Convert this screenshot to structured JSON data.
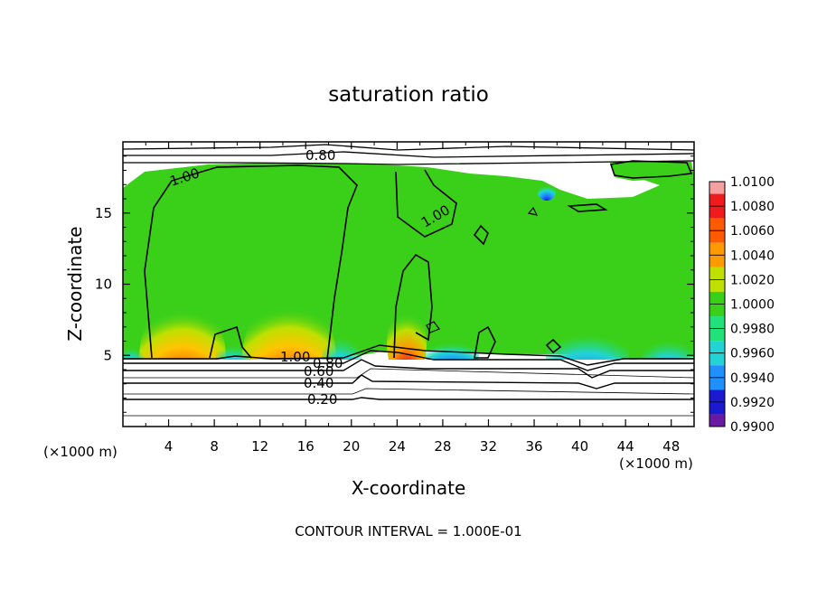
{
  "chart_data": {
    "type": "heatmap",
    "title": "saturation ratio",
    "xlabel": "X-coordinate",
    "ylabel": "Z-coordinate",
    "x_unit_left": "(×1000 m)",
    "x_unit_right": "(×1000 m)",
    "xlim": [
      0,
      50
    ],
    "ylim": [
      0,
      20
    ],
    "x_ticks": [
      4,
      8,
      12,
      16,
      20,
      24,
      28,
      32,
      36,
      40,
      44,
      48
    ],
    "y_ticks": [
      5,
      10,
      15
    ],
    "footer": "CONTOUR INTERVAL = 1.000E-01",
    "colorbar": {
      "labels": [
        "1.0100",
        "1.0080",
        "1.0060",
        "1.0040",
        "1.0020",
        "1.0000",
        "0.9980",
        "0.9960",
        "0.9940",
        "0.9920",
        "0.9900"
      ],
      "colors": [
        "#f4a0a0",
        "#ee1c1c",
        "#ff5a00",
        "#ff9a00",
        "#bfe000",
        "#3ad01a",
        "#22e07a",
        "#22d4d4",
        "#2090ff",
        "#1a1ad0",
        "#6a1aa0",
        "#7a2aa0"
      ]
    },
    "contour_labels": [
      "0.80",
      "1.00",
      "1.00",
      "1.00",
      "0.80",
      "0.60",
      "0.40",
      "0.20"
    ],
    "contour_levels": [
      0.2,
      0.4,
      0.6,
      0.8,
      1.0
    ],
    "grid": false
  }
}
